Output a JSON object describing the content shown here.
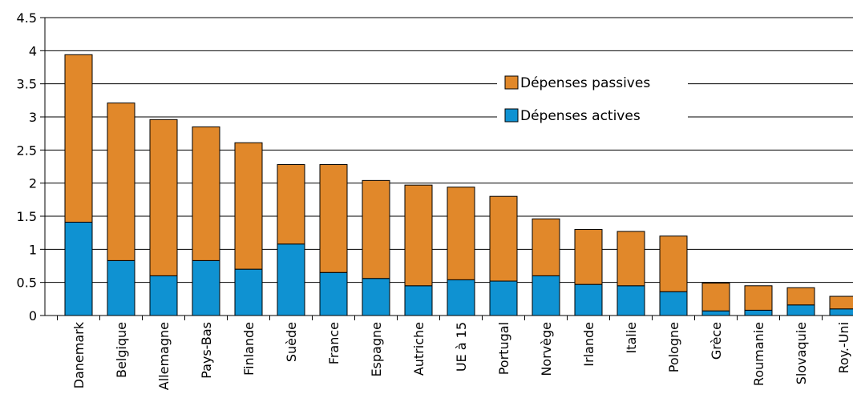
{
  "chart_data": {
    "type": "bar",
    "stacked": true,
    "categories": [
      "Danemark",
      "Belgique",
      "Allemagne",
      "Pays-Bas",
      "Finlande",
      "Suède",
      "France",
      "Espagne",
      "Autriche",
      "UE à 15",
      "Portugal",
      "Norvège",
      "Irlande",
      "Italie",
      "Pologne",
      "Grèce",
      "Roumanie",
      "Slovaquie",
      "Roy.-Uni"
    ],
    "series": [
      {
        "name": "Dépenses actives",
        "color": "#0f92d2",
        "values": [
          1.41,
          0.83,
          0.6,
          0.83,
          0.7,
          1.08,
          0.65,
          0.56,
          0.45,
          0.54,
          0.52,
          0.6,
          0.47,
          0.45,
          0.36,
          0.07,
          0.08,
          0.16,
          0.1
        ]
      },
      {
        "name": "Dépenses passives",
        "color": "#e1882a",
        "values": [
          2.53,
          2.38,
          2.36,
          2.02,
          1.91,
          1.2,
          1.63,
          1.48,
          1.52,
          1.4,
          1.28,
          0.86,
          0.83,
          0.82,
          0.84,
          0.42,
          0.37,
          0.26,
          0.19
        ]
      }
    ],
    "ylim": [
      0,
      4.5
    ],
    "yticks": [
      "0",
      "0.5",
      "1",
      "1.5",
      "2",
      "2.5",
      "3",
      "3.5",
      "4",
      "4.5"
    ],
    "grid": true,
    "legend": {
      "placement": "top-right",
      "entries": [
        "Dépenses passives",
        "Dépenses actives"
      ]
    },
    "title": "",
    "xlabel": "",
    "ylabel": ""
  }
}
